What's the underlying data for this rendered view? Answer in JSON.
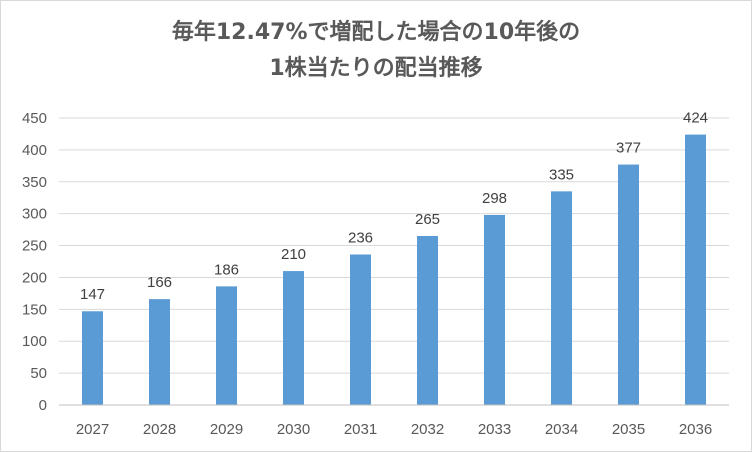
{
  "chart_data": {
    "type": "bar",
    "title_line1": "毎年12.47%で増配した場合の10年後の",
    "title_line2": "1株当たりの配当推移",
    "categories": [
      "2027",
      "2028",
      "2029",
      "2030",
      "2031",
      "2032",
      "2033",
      "2034",
      "2035",
      "2036"
    ],
    "values": [
      147,
      166,
      186,
      210,
      236,
      265,
      298,
      335,
      377,
      424
    ],
    "ylim": [
      0,
      450
    ],
    "yticks": [
      0,
      50,
      100,
      150,
      200,
      250,
      300,
      350,
      400,
      450
    ],
    "bar_color": "#5b9bd5",
    "grid": true,
    "legend": false
  }
}
